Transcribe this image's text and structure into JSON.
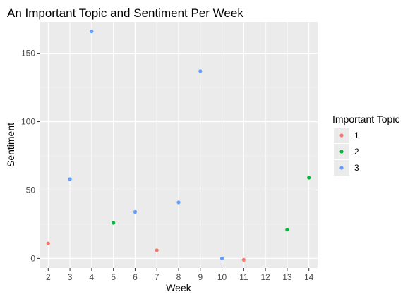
{
  "chart_data": {
    "type": "scatter",
    "title": "An Important Topic and Sentiment Per Week",
    "xlabel": "Week",
    "ylabel": "Sentiment",
    "x_ticks": [
      2,
      3,
      4,
      5,
      6,
      7,
      8,
      9,
      10,
      11,
      12,
      13,
      14
    ],
    "y_ticks": [
      0,
      50,
      100,
      150
    ],
    "xlim": [
      1.6,
      14.4
    ],
    "ylim": [
      -7,
      173
    ],
    "grid": true,
    "legend": {
      "title": "Important Topic",
      "placement": "right",
      "entries": [
        {
          "label": "1",
          "color": "#F8766D"
        },
        {
          "label": "2",
          "color": "#00BA38"
        },
        {
          "label": "3",
          "color": "#619CFF"
        }
      ]
    },
    "points": [
      {
        "x": 2,
        "y": 11,
        "group": "1"
      },
      {
        "x": 3,
        "y": 58,
        "group": "3"
      },
      {
        "x": 4,
        "y": 166,
        "group": "3"
      },
      {
        "x": 5,
        "y": 26,
        "group": "2"
      },
      {
        "x": 6,
        "y": 34,
        "group": "3"
      },
      {
        "x": 7,
        "y": 6,
        "group": "1"
      },
      {
        "x": 8,
        "y": 41,
        "group": "3"
      },
      {
        "x": 9,
        "y": 137,
        "group": "3"
      },
      {
        "x": 10,
        "y": 0,
        "group": "3"
      },
      {
        "x": 11,
        "y": -1,
        "group": "1"
      },
      {
        "x": 13,
        "y": 21,
        "group": "2"
      },
      {
        "x": 14,
        "y": 59,
        "group": "2"
      }
    ]
  }
}
